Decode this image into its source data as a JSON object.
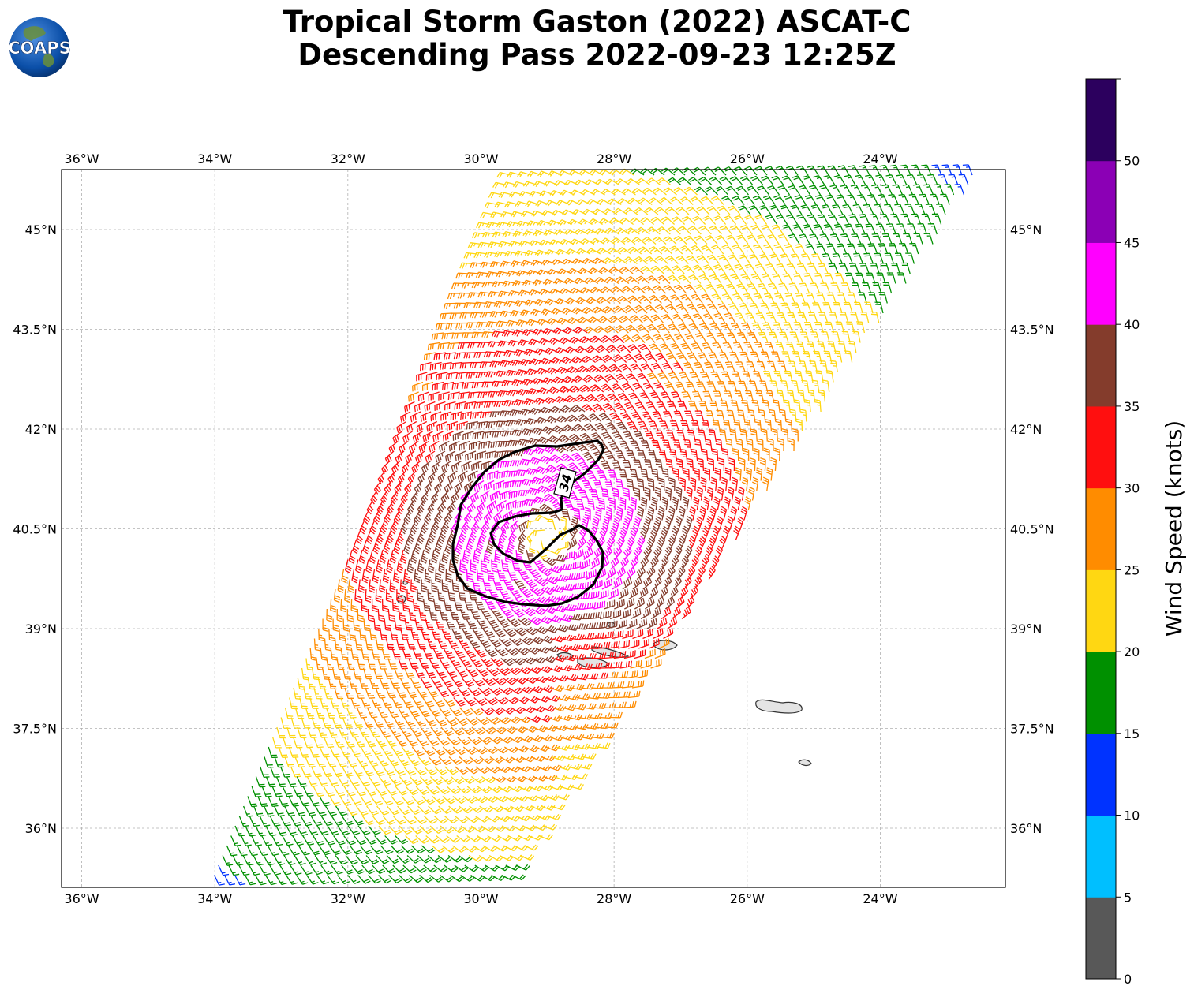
{
  "header": {
    "title_line1": "Tropical Storm Gaston (2022) ASCAT-C",
    "title_line2": "Descending Pass 2022-09-23 12:25Z",
    "logo_text": "COAPS"
  },
  "map": {
    "lon_ticks": [
      "36°W",
      "34°W",
      "32°W",
      "30°W",
      "28°W",
      "26°W",
      "24°W"
    ],
    "lat_ticks": [
      "45°N",
      "43.5°N",
      "42°N",
      "40.5°N",
      "39°N",
      "37.5°N",
      "36°N"
    ],
    "contour_label": "34",
    "storm_center": {
      "lon": -29.0,
      "lat": 40.4
    },
    "colors": {
      "grid": "#b0b0b0",
      "coast": "#333333",
      "land": "#e4e4e4"
    }
  },
  "colorbar": {
    "label": "Wind Speed (knots)",
    "tick_labels": [
      "0",
      "5",
      "10",
      "15",
      "20",
      "25",
      "30",
      "35",
      "40",
      "45",
      "50"
    ],
    "bins": [
      {
        "range": "0-5",
        "color": "#585858"
      },
      {
        "range": "5-10",
        "color": "#00bfff"
      },
      {
        "range": "10-15",
        "color": "#0033ff"
      },
      {
        "range": "15-20",
        "color": "#009000"
      },
      {
        "range": "20-25",
        "color": "#ffd712"
      },
      {
        "range": "25-30",
        "color": "#ff8c00"
      },
      {
        "range": "30-35",
        "color": "#ff0f0f"
      },
      {
        "range": "35-40",
        "color": "#843c2c"
      },
      {
        "range": "40-45",
        "color": "#ff00ff"
      },
      {
        "range": "45-50",
        "color": "#8b00b5"
      },
      {
        "range": "50+",
        "color": "#2c005e"
      }
    ]
  }
}
